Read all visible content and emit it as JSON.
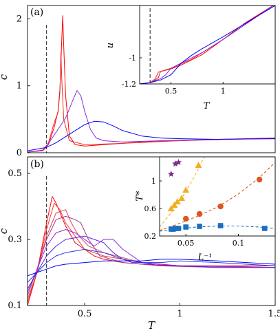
{
  "chart_data": [
    {
      "id": "a-main",
      "type": "line",
      "panel_label": "(a)",
      "xlabel": "",
      "ylabel": "c",
      "xlim": [
        0.2,
        1.5
      ],
      "ylim": [
        0,
        2.2
      ],
      "yticks": [
        {
          "v": 0,
          "label": "0"
        },
        {
          "v": 1,
          "label": "1"
        },
        {
          "v": 2,
          "label": "2"
        }
      ],
      "xticks": [],
      "vline": 0.3,
      "series": [
        {
          "color": "#ff0000",
          "x": [
            0.2,
            0.28,
            0.31,
            0.34,
            0.36,
            0.37,
            0.38,
            0.385,
            0.39,
            0.4,
            0.42,
            0.45,
            0.5,
            0.6,
            0.8,
            1.0,
            1.2,
            1.5
          ],
          "y": [
            0.01,
            0.03,
            0.12,
            0.38,
            0.62,
            0.95,
            1.7,
            2.05,
            1.6,
            0.85,
            0.25,
            0.12,
            0.1,
            0.12,
            0.16,
            0.18,
            0.2,
            0.22
          ]
        },
        {
          "color": "#ee2a2a",
          "x": [
            0.2,
            0.28,
            0.31,
            0.34,
            0.36,
            0.37,
            0.375,
            0.38,
            0.39,
            0.42,
            0.5,
            0.7,
            1.0,
            1.5
          ],
          "y": [
            0.01,
            0.03,
            0.15,
            0.45,
            0.6,
            0.9,
            1.5,
            1.1,
            0.5,
            0.18,
            0.12,
            0.14,
            0.18,
            0.22
          ]
        },
        {
          "color": "#8a2be2",
          "x": [
            0.2,
            0.28,
            0.32,
            0.36,
            0.4,
            0.44,
            0.46,
            0.48,
            0.5,
            0.53,
            0.56,
            0.6,
            0.7,
            0.9,
            1.2,
            1.5
          ],
          "y": [
            0.01,
            0.04,
            0.18,
            0.35,
            0.52,
            0.8,
            0.93,
            0.85,
            0.62,
            0.35,
            0.22,
            0.18,
            0.16,
            0.18,
            0.2,
            0.21
          ]
        },
        {
          "color": "#0000ff",
          "x": [
            0.2,
            0.3,
            0.35,
            0.4,
            0.45,
            0.5,
            0.55,
            0.6,
            0.65,
            0.7,
            0.8,
            0.9,
            1.0,
            1.2,
            1.5
          ],
          "y": [
            0.03,
            0.08,
            0.15,
            0.24,
            0.33,
            0.42,
            0.47,
            0.46,
            0.4,
            0.33,
            0.25,
            0.22,
            0.21,
            0.2,
            0.21
          ]
        }
      ]
    },
    {
      "id": "a-inset",
      "type": "line",
      "xlabel": "T",
      "ylabel": "u",
      "xlim": [
        0.2,
        1.5
      ],
      "ylim": [
        -1.2,
        -0.6
      ],
      "yticks": [
        {
          "v": -1.2,
          "label": "-1.2"
        },
        {
          "v": -1,
          "label": "-1"
        }
      ],
      "xticks": [
        {
          "v": 0.5,
          "label": "0.5"
        },
        {
          "v": 1,
          "label": "1"
        }
      ],
      "vline": 0.3,
      "series": [
        {
          "color": "#ff0000",
          "x": [
            0.2,
            0.3,
            0.35,
            0.38,
            0.4,
            0.5,
            0.6,
            0.8,
            1.0,
            1.2,
            1.5
          ],
          "y": [
            -1.2,
            -1.19,
            -1.17,
            -1.15,
            -1.105,
            -1.085,
            -1.055,
            -0.975,
            -0.86,
            -0.74,
            -0.59
          ]
        },
        {
          "color": "#ee2a2a",
          "x": [
            0.2,
            0.3,
            0.35,
            0.38,
            0.5,
            0.7,
            1.0,
            1.5
          ],
          "y": [
            -1.2,
            -1.19,
            -1.16,
            -1.11,
            -1.08,
            -1.01,
            -0.86,
            -0.59
          ]
        },
        {
          "color": "#8a2be2",
          "x": [
            0.2,
            0.3,
            0.4,
            0.45,
            0.5,
            0.6,
            0.8,
            1.0,
            1.5
          ],
          "y": [
            -1.2,
            -1.19,
            -1.16,
            -1.13,
            -1.08,
            -1.04,
            -0.96,
            -0.86,
            -0.59
          ]
        },
        {
          "color": "#0000ff",
          "x": [
            0.2,
            0.3,
            0.4,
            0.5,
            0.6,
            0.7,
            0.8,
            1.0,
            1.5
          ],
          "y": [
            -1.2,
            -1.19,
            -1.17,
            -1.13,
            -1.04,
            -0.98,
            -0.93,
            -0.84,
            -0.6
          ]
        }
      ]
    },
    {
      "id": "b-main",
      "type": "line",
      "panel_label": "(b)",
      "xlabel": "T",
      "ylabel": "c",
      "xlim": [
        0.2,
        1.5
      ],
      "ylim": [
        0.1,
        0.55
      ],
      "yticks": [
        {
          "v": 0.1,
          "label": "0.1"
        },
        {
          "v": 0.3,
          "label": "0.3"
        },
        {
          "v": 0.5,
          "label": "0.5"
        }
      ],
      "xticks": [
        {
          "v": 0.5,
          "label": "0.5"
        },
        {
          "v": 1,
          "label": "1"
        },
        {
          "v": 1.5,
          "label": "1.5"
        }
      ],
      "vline": 0.3,
      "series": [
        {
          "color": "#ff0000",
          "x": [
            0.2,
            0.25,
            0.3,
            0.33,
            0.35,
            0.4,
            0.45,
            0.5,
            0.55,
            0.6,
            0.7,
            0.8,
            1.0,
            1.2,
            1.5
          ],
          "y": [
            0.1,
            0.2,
            0.35,
            0.43,
            0.41,
            0.34,
            0.29,
            0.27,
            0.25,
            0.24,
            0.23,
            0.225,
            0.22,
            0.22,
            0.22
          ]
        },
        {
          "color": "#ee3a3a",
          "x": [
            0.2,
            0.25,
            0.3,
            0.34,
            0.37,
            0.4,
            0.45,
            0.5,
            0.6,
            0.8,
            1.0,
            1.2,
            1.5
          ],
          "y": [
            0.11,
            0.2,
            0.33,
            0.41,
            0.39,
            0.35,
            0.31,
            0.27,
            0.25,
            0.23,
            0.22,
            0.22,
            0.215
          ]
        },
        {
          "color": "#dd4455",
          "x": [
            0.2,
            0.25,
            0.3,
            0.35,
            0.4,
            0.43,
            0.47,
            0.52,
            0.6,
            0.8,
            1.0,
            1.5
          ],
          "y": [
            0.12,
            0.2,
            0.31,
            0.38,
            0.39,
            0.35,
            0.31,
            0.28,
            0.26,
            0.23,
            0.22,
            0.215
          ]
        },
        {
          "color": "#aa3388",
          "x": [
            0.2,
            0.25,
            0.3,
            0.35,
            0.4,
            0.45,
            0.48,
            0.52,
            0.58,
            0.7,
            0.9,
            1.2,
            1.5
          ],
          "y": [
            0.13,
            0.21,
            0.3,
            0.36,
            0.37,
            0.36,
            0.35,
            0.3,
            0.25,
            0.23,
            0.22,
            0.215,
            0.215
          ]
        },
        {
          "color": "#8a2be2",
          "x": [
            0.2,
            0.25,
            0.3,
            0.35,
            0.4,
            0.45,
            0.5,
            0.55,
            0.6,
            0.65,
            0.7,
            0.8,
            1.0,
            1.5
          ],
          "y": [
            0.14,
            0.21,
            0.28,
            0.32,
            0.33,
            0.32,
            0.3,
            0.28,
            0.3,
            0.3,
            0.27,
            0.23,
            0.22,
            0.215
          ]
        },
        {
          "color": "#5522dd",
          "x": [
            0.2,
            0.25,
            0.3,
            0.35,
            0.4,
            0.5,
            0.6,
            0.65,
            0.7,
            0.75,
            0.8,
            0.9,
            1.0,
            1.2,
            1.5
          ],
          "y": [
            0.15,
            0.2,
            0.25,
            0.28,
            0.3,
            0.31,
            0.29,
            0.26,
            0.24,
            0.23,
            0.23,
            0.22,
            0.22,
            0.215,
            0.215
          ]
        },
        {
          "color": "#2233ee",
          "x": [
            0.2,
            0.25,
            0.3,
            0.35,
            0.4,
            0.5,
            0.6,
            0.7,
            0.8,
            0.9,
            1.0,
            1.2,
            1.5
          ],
          "y": [
            0.17,
            0.2,
            0.23,
            0.25,
            0.26,
            0.27,
            0.26,
            0.24,
            0.23,
            0.23,
            0.235,
            0.23,
            0.22
          ]
        },
        {
          "color": "#0000ff",
          "x": [
            0.2,
            0.25,
            0.3,
            0.35,
            0.4,
            0.5,
            0.6,
            0.7,
            0.8,
            0.9,
            1.0,
            1.2,
            1.5
          ],
          "y": [
            0.19,
            0.2,
            0.21,
            0.22,
            0.225,
            0.23,
            0.235,
            0.235,
            0.235,
            0.24,
            0.24,
            0.235,
            0.225
          ]
        }
      ]
    },
    {
      "id": "b-inset",
      "type": "scatter",
      "xlabel": "L⁻¹",
      "ylabel": "T*",
      "xlim": [
        0.025,
        0.135
      ],
      "ylim": [
        0.2,
        1.35
      ],
      "yticks": [
        {
          "v": 0.2,
          "label": "0.2"
        },
        {
          "v": 0.6,
          "label": "0.6"
        },
        {
          "v": 1,
          "label": "1"
        }
      ],
      "xticks": [
        {
          "v": 0.05,
          "label": "0.05"
        },
        {
          "v": 0.1,
          "label": "0.1"
        }
      ],
      "series": [
        {
          "marker": "star",
          "color": "#7b2d8e",
          "x": [
            0.036,
            0.04,
            0.043
          ],
          "y": [
            1.1,
            1.25,
            1.27
          ]
        },
        {
          "marker": "triangle",
          "color": "#f0b020",
          "x": [
            0.036,
            0.039,
            0.042,
            0.046,
            0.05,
            0.062
          ],
          "y": [
            0.6,
            0.65,
            0.7,
            0.75,
            0.87,
            1.23
          ]
        },
        {
          "marker": "circle",
          "color": "#dd5522",
          "x": [
            0.05,
            0.063,
            0.083,
            0.12
          ],
          "y": [
            0.45,
            0.52,
            0.63,
            1.02
          ]
        },
        {
          "marker": "square",
          "color": "#1a6fc0",
          "x": [
            0.036,
            0.038,
            0.04,
            0.043,
            0.05,
            0.063,
            0.083,
            0.125
          ],
          "y": [
            0.3,
            0.3,
            0.31,
            0.31,
            0.33,
            0.34,
            0.35,
            0.31
          ]
        }
      ],
      "fit_curves": [
        {
          "color": "#f0b020",
          "dash": "4,3",
          "x": [
            0.025,
            0.035,
            0.045,
            0.055,
            0.06,
            0.065,
            0.07
          ],
          "y": [
            0.33,
            0.52,
            0.72,
            0.98,
            1.12,
            1.28,
            1.4
          ]
        },
        {
          "color": "#dd5522",
          "dash": "4,3",
          "x": [
            0.025,
            0.04,
            0.06,
            0.08,
            0.1,
            0.12,
            0.135
          ],
          "y": [
            0.28,
            0.36,
            0.48,
            0.62,
            0.81,
            1.05,
            1.27
          ]
        },
        {
          "color": "#1a6fc0",
          "dash": "4,3",
          "x": [
            0.025,
            0.04,
            0.06,
            0.08,
            0.1,
            0.12,
            0.135
          ],
          "y": [
            0.27,
            0.3,
            0.33,
            0.345,
            0.345,
            0.33,
            0.31
          ]
        }
      ]
    }
  ]
}
